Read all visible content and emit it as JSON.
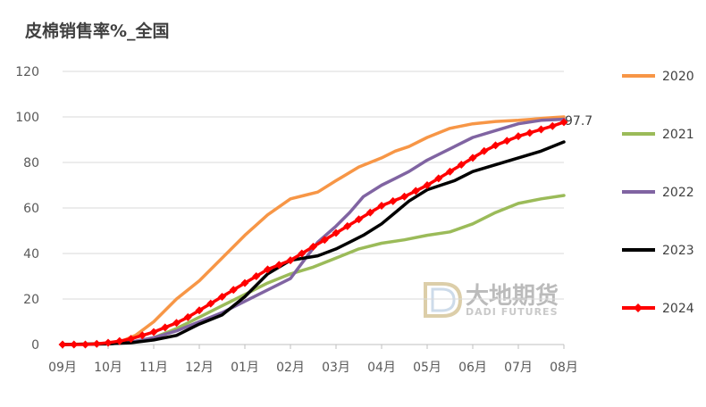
{
  "chart_data": {
    "type": "line",
    "title": "皮棉销售率%_全国",
    "xlabel": "",
    "ylabel": "",
    "ylim": [
      0,
      120
    ],
    "yticks": [
      "0",
      "20",
      "40",
      "60",
      "80",
      "100",
      "120"
    ],
    "xlim": [
      0,
      11
    ],
    "xticks": [
      "09月",
      "10月",
      "11月",
      "12月",
      "01月",
      "02月",
      "03月",
      "04月",
      "05月",
      "06月",
      "07月",
      "08月"
    ],
    "grid": "horizontal",
    "legend_position": "right",
    "annotation": "97.7",
    "watermark": {
      "cn": "大地期货",
      "en": "DADI FUTURES"
    },
    "series": [
      {
        "name": "2020",
        "color": "#F79646",
        "x": [
          0,
          1,
          1.3,
          1.6,
          2,
          2.5,
          3,
          3.5,
          4,
          4.5,
          5,
          5.3,
          5.6,
          6,
          6.5,
          7,
          7.3,
          7.6,
          8,
          8.5,
          9,
          9.5,
          10,
          10.3,
          10.6,
          11
        ],
        "y": [
          0,
          0.5,
          1.5,
          4,
          10,
          20,
          28,
          38,
          48,
          57,
          64,
          65.5,
          67,
          72,
          78,
          82,
          85,
          87,
          91,
          95,
          97,
          98,
          98.5,
          99,
          99.5,
          100
        ]
      },
      {
        "name": "2021",
        "color": "#9BBB59",
        "x": [
          0,
          1,
          1.5,
          2,
          2.5,
          3,
          3.5,
          4,
          4.5,
          5,
          5.5,
          6,
          6.5,
          7,
          7.5,
          8,
          8.5,
          9,
          9.5,
          10,
          10.5,
          11
        ],
        "y": [
          0,
          0.3,
          1,
          3,
          7,
          12,
          17,
          22,
          27,
          31,
          34,
          38,
          42,
          44.5,
          46,
          48,
          49.5,
          53,
          58,
          62,
          64,
          65.5
        ]
      },
      {
        "name": "2022",
        "color": "#8064A2",
        "x": [
          0,
          1,
          1.5,
          2,
          2.5,
          3,
          3.5,
          4,
          4.5,
          5,
          5.3,
          5.6,
          6,
          6.3,
          6.6,
          7,
          7.3,
          7.6,
          8,
          8.3,
          8.6,
          9,
          9.5,
          10,
          10.5,
          11
        ],
        "y": [
          0,
          0.3,
          1,
          3,
          6,
          10,
          14,
          19,
          24,
          29,
          37,
          45,
          52,
          58,
          65,
          70,
          73,
          76,
          81,
          84,
          87,
          91,
          94,
          97,
          98.5,
          99
        ]
      },
      {
        "name": "2023",
        "color": "#000000",
        "x": [
          0,
          1,
          1.5,
          2,
          2.5,
          3,
          3.5,
          4,
          4.5,
          5,
          5.3,
          5.6,
          6,
          6.3,
          6.6,
          7,
          7.3,
          7.6,
          8,
          8.3,
          8.6,
          9,
          9.5,
          10,
          10.5,
          11
        ],
        "y": [
          0,
          0.3,
          0.8,
          2,
          4,
          9,
          13,
          21,
          31,
          37,
          38,
          39,
          42,
          45,
          48,
          53,
          58,
          63,
          68,
          70,
          72,
          76,
          79,
          82,
          85,
          89
        ]
      },
      {
        "name": "2024",
        "color": "#FF0000",
        "x": [
          0,
          0.25,
          0.5,
          0.75,
          1,
          1.25,
          1.5,
          1.75,
          2,
          2.25,
          2.5,
          2.75,
          3,
          3.25,
          3.5,
          3.75,
          4,
          4.25,
          4.5,
          4.75,
          5,
          5.25,
          5.5,
          5.75,
          6,
          6.25,
          6.5,
          6.75,
          7,
          7.25,
          7.5,
          7.75,
          8,
          8.25,
          8.5,
          8.75,
          9,
          9.25,
          9.5,
          9.75,
          10,
          10.25,
          10.5,
          10.75,
          11
        ],
        "y": [
          0,
          0,
          0,
          0.3,
          0.8,
          1.5,
          2.5,
          4,
          5.5,
          7.5,
          9.5,
          12,
          15,
          18,
          21,
          24,
          27,
          30,
          33,
          35,
          37,
          40,
          43,
          46,
          49,
          52,
          55,
          58,
          61,
          63,
          65,
          67.5,
          70,
          73,
          76,
          79,
          82,
          85,
          87.5,
          89.5,
          91.5,
          93,
          94.5,
          96,
          97.7
        ]
      }
    ]
  }
}
